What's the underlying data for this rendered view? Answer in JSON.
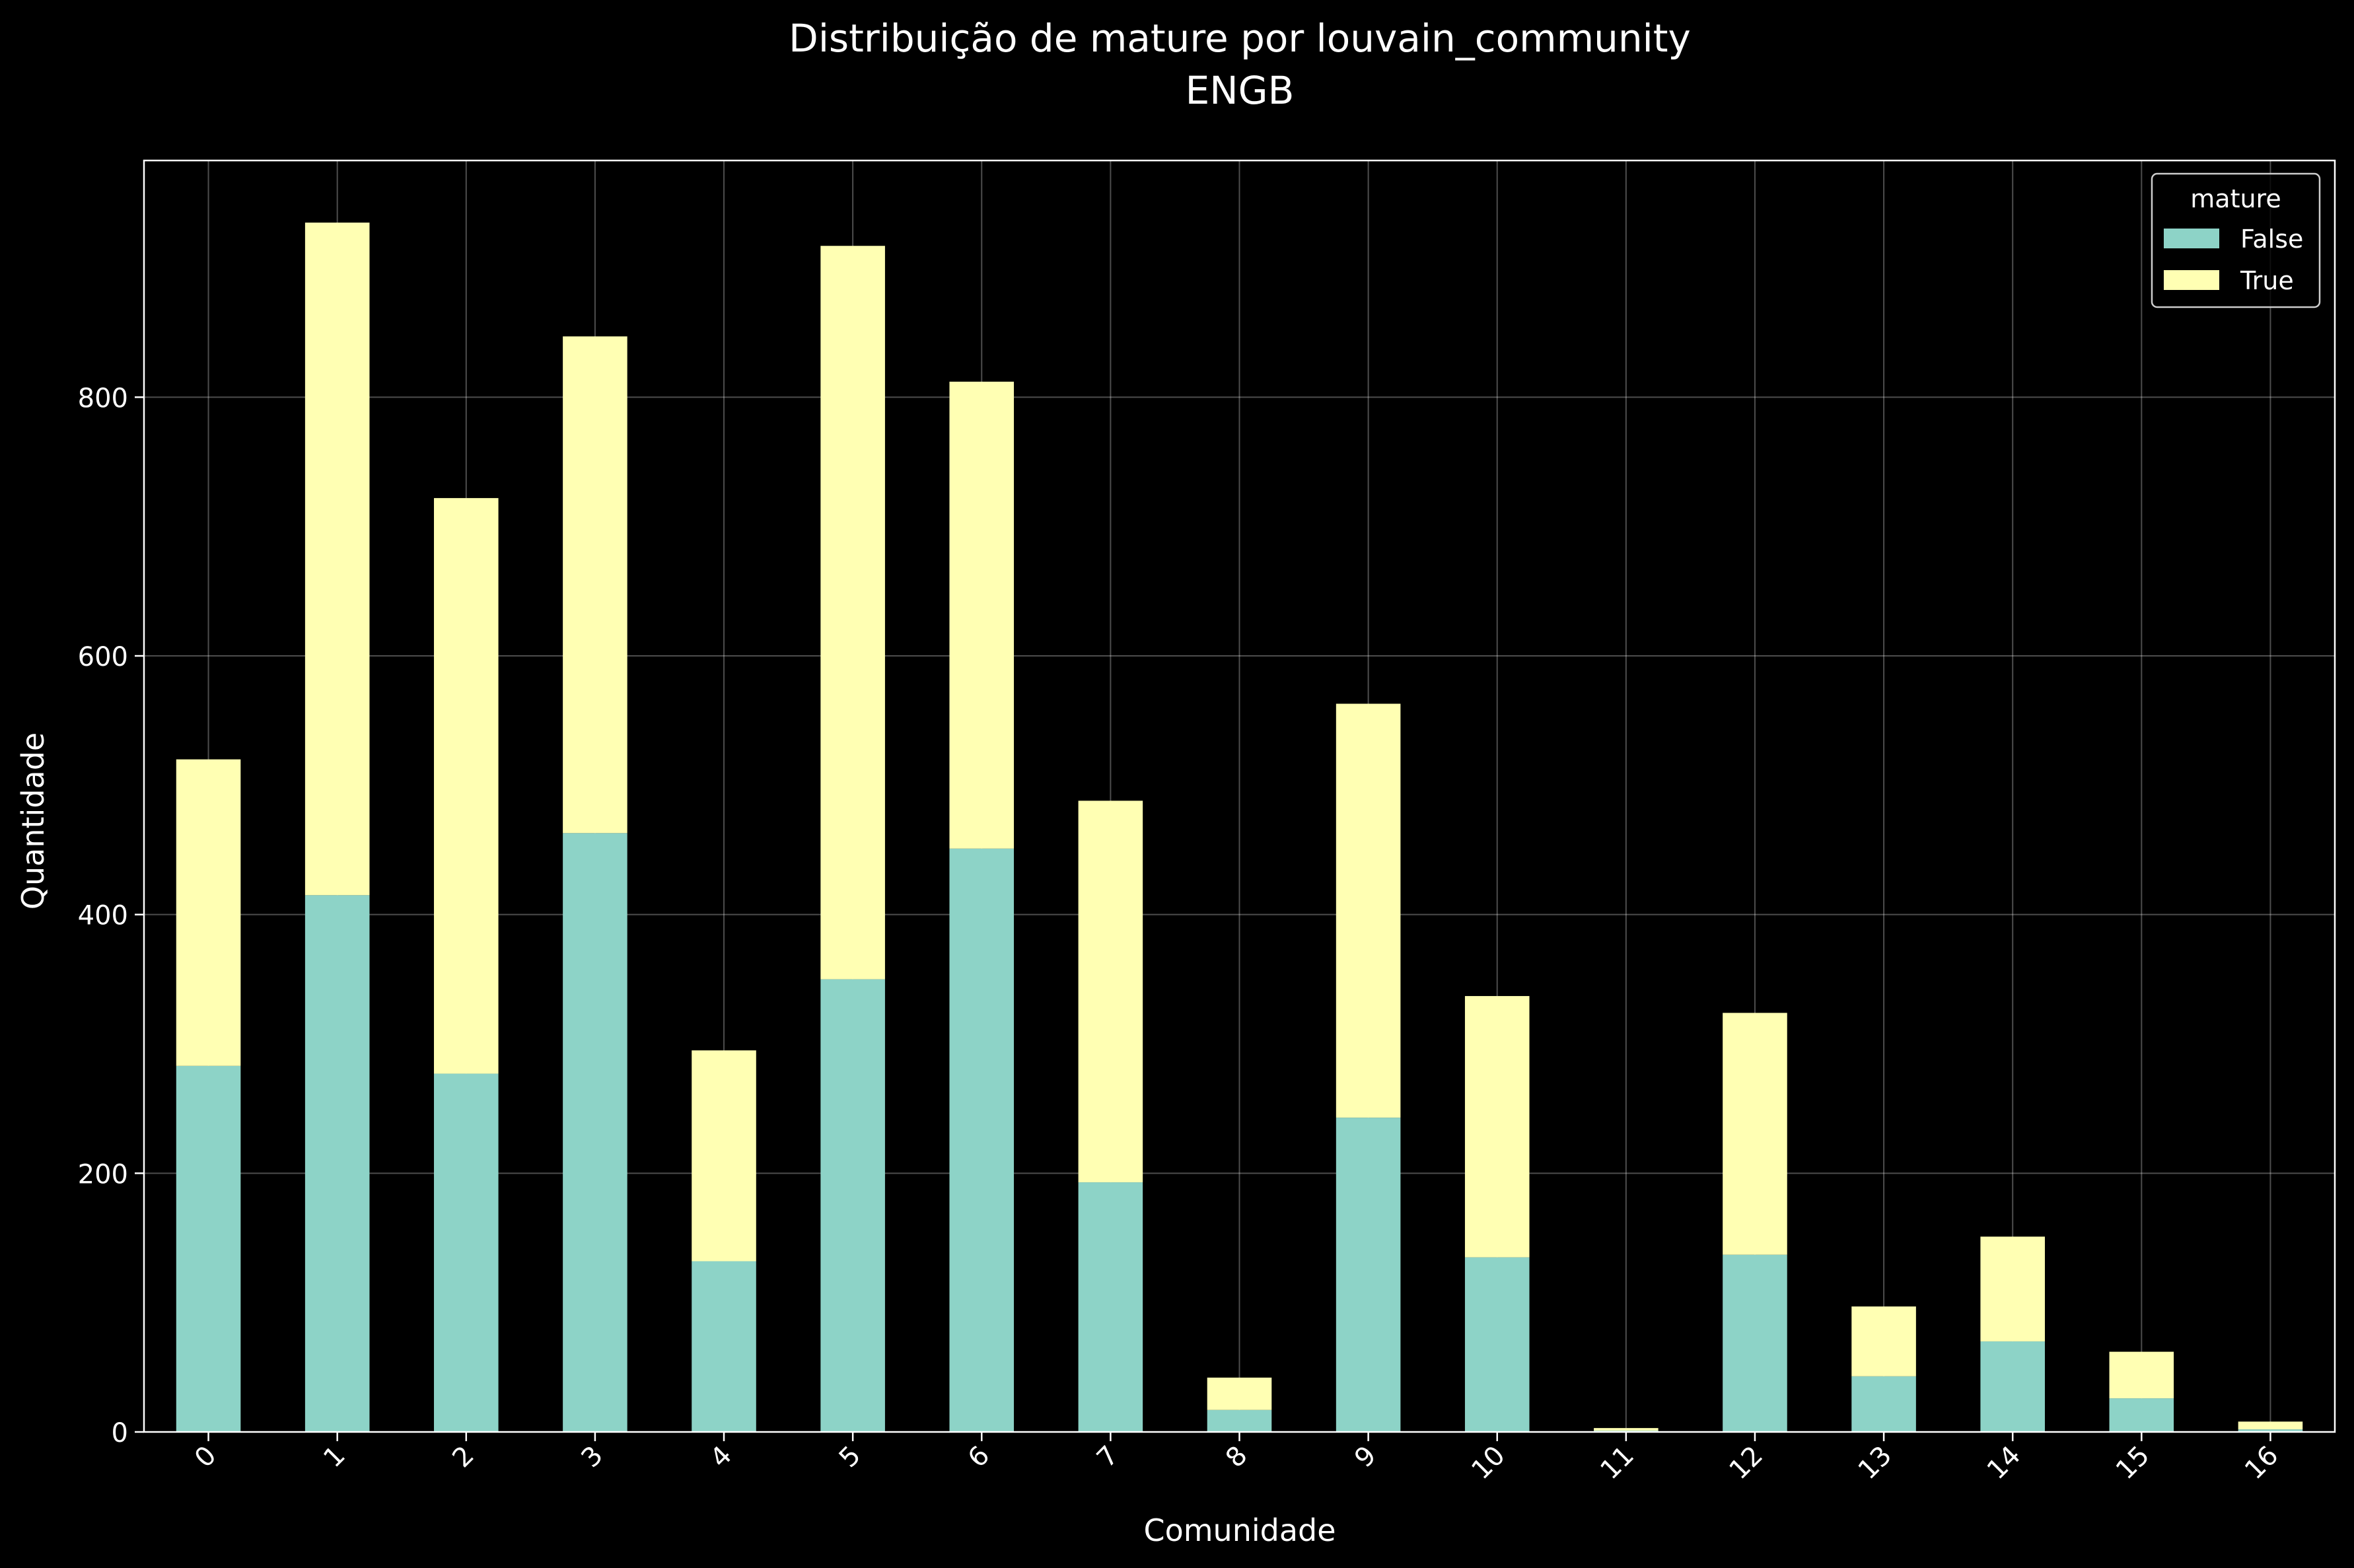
{
  "chart_data": {
    "type": "bar",
    "stacked": true,
    "title": "Distribuição de mature por louvain_community",
    "subtitle": "ENGB",
    "xlabel": "Comunidade",
    "ylabel": "Quantidade",
    "categories": [
      "0",
      "1",
      "2",
      "3",
      "4",
      "5",
      "6",
      "7",
      "8",
      "9",
      "10",
      "11",
      "12",
      "13",
      "14",
      "15",
      "16"
    ],
    "series": [
      {
        "name": "False",
        "color": "#8dd3c7",
        "values": [
          283,
          415,
          277,
          463,
          132,
          350,
          451,
          193,
          17,
          243,
          135,
          1,
          137,
          43,
          70,
          26,
          2
        ]
      },
      {
        "name": "True",
        "color": "#ffffb3",
        "values": [
          237,
          520,
          445,
          384,
          163,
          567,
          361,
          295,
          25,
          320,
          202,
          2,
          187,
          54,
          81,
          36,
          6
        ]
      }
    ],
    "ylim": [
      0,
      983
    ],
    "yticks": [
      0,
      200,
      400,
      600,
      800
    ],
    "grid": true,
    "legend": {
      "title": "mature",
      "position": "top-right"
    },
    "background": "#000000",
    "text_color": "#ffffff"
  }
}
